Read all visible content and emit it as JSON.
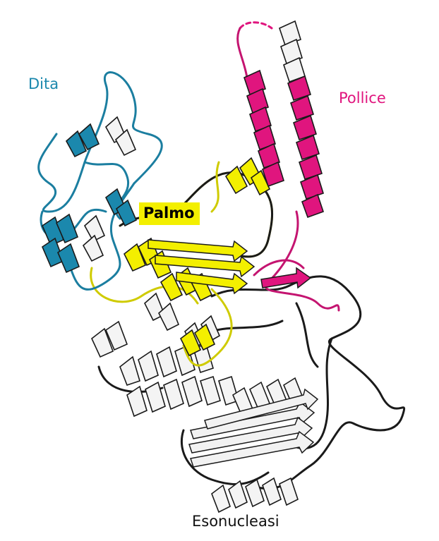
{
  "labels": {
    "fingers": "Dita",
    "thumb": "Pollice",
    "palm": "Palmo",
    "exonuclease": "Esonucleasi"
  },
  "colors": {
    "fingers": "#1b88ad",
    "thumb": "#e0157e",
    "palm": "#f0ef00",
    "exonuclease": "#ffffff",
    "outline": "#1a1a1a"
  },
  "icons": {
    "structure": "protein-ribbon-diagram"
  }
}
